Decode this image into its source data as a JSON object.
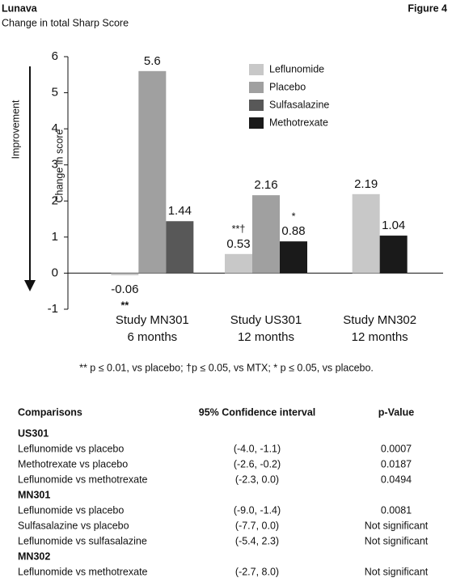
{
  "header": {
    "title": "Lunava",
    "subtitle": "Change in total Sharp Score",
    "figure": "Figure 4"
  },
  "chart_data": {
    "type": "bar",
    "ylabel": "Change in score",
    "side_label": "Improvement",
    "categories": [
      "Study MN301",
      "Study US301",
      "Study MN302"
    ],
    "category_sublabels": [
      "6 months",
      "12 months",
      "12 months"
    ],
    "series": [
      {
        "name": "Leflunomide",
        "color": "#c8c8c8",
        "values": [
          -0.06,
          0.53,
          2.19
        ],
        "notes": [
          "**",
          "**†",
          null
        ]
      },
      {
        "name": "Placebo",
        "color": "#a0a0a0",
        "values": [
          5.6,
          2.16,
          null
        ]
      },
      {
        "name": "Sulfasalazine",
        "color": "#585858",
        "values": [
          1.44,
          null,
          null
        ]
      },
      {
        "name": "Methotrexate",
        "color": "#1a1a1a",
        "values": [
          null,
          0.88,
          1.04
        ],
        "notes": [
          null,
          "*",
          null
        ]
      }
    ],
    "ylim": [
      -1,
      6
    ],
    "yticks": [
      -1,
      0,
      1,
      2,
      3,
      4,
      5,
      6
    ],
    "footnote": "** p ≤ 0.01, vs placebo; †p ≤ 0.05, vs MTX; * p ≤ 0.05, vs placebo."
  },
  "table": {
    "headers": [
      "Comparisons",
      "95% Confidence interval",
      "p-Value"
    ],
    "sections": [
      {
        "title": "US301",
        "rows": [
          [
            "Leflunomide vs placebo",
            "(-4.0, -1.1)",
            "0.0007"
          ],
          [
            "Methotrexate vs placebo",
            "(-2.6, -0.2)",
            "0.0187"
          ],
          [
            "Leflunomide vs methotrexate",
            "(-2.3, 0.0)",
            "0.0494"
          ]
        ]
      },
      {
        "title": "MN301",
        "rows": [
          [
            "Leflunomide vs placebo",
            "(-9.0, -1.4)",
            "0.0081"
          ],
          [
            "Sulfasalazine vs placebo",
            "(-7.7, 0.0)",
            "Not significant"
          ],
          [
            "Leflunomide vs sulfasalazine",
            "(-5.4, 2.3)",
            "Not significant"
          ]
        ]
      },
      {
        "title": "MN302",
        "rows": [
          [
            "Leflunomide vs methotrexate",
            "(-2.7, 8.0)",
            "Not significant"
          ]
        ]
      }
    ]
  }
}
